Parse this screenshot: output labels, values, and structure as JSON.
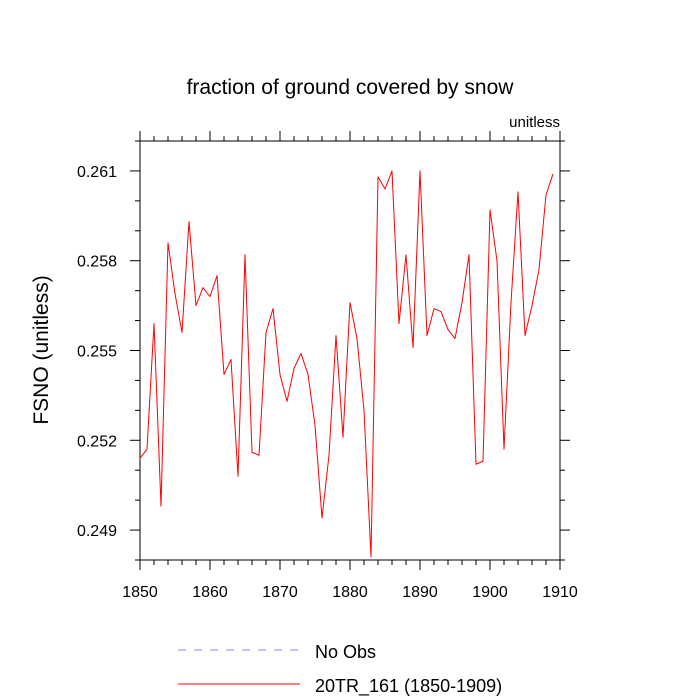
{
  "chart_data": {
    "type": "line",
    "title": "fraction of ground covered by snow",
    "units_label": "unitless",
    "ylabel": "FSNO  (unitless)",
    "xlabel": "",
    "xlim": [
      1850,
      1910
    ],
    "ylim": [
      0.248,
      0.262
    ],
    "x_ticks": [
      1850,
      1860,
      1870,
      1880,
      1890,
      1900,
      1910
    ],
    "x_tick_labels": [
      "1850",
      "1860",
      "1870",
      "1880",
      "1890",
      "1900",
      "1910"
    ],
    "y_ticks": [
      0.249,
      0.252,
      0.255,
      0.258,
      0.261
    ],
    "y_tick_labels": [
      "0.249",
      "0.252",
      "0.255",
      "0.258",
      "0.261"
    ],
    "grid": false,
    "legend_position": "bottom",
    "series": [
      {
        "name": "20TR_161 (1850-1909)",
        "color": "#ff0000",
        "style": "solid",
        "x": [
          1850,
          1851,
          1852,
          1853,
          1854,
          1855,
          1856,
          1857,
          1858,
          1859,
          1860,
          1861,
          1862,
          1863,
          1864,
          1865,
          1866,
          1867,
          1868,
          1869,
          1870,
          1871,
          1872,
          1873,
          1874,
          1875,
          1876,
          1877,
          1878,
          1879,
          1880,
          1881,
          1882,
          1883,
          1884,
          1885,
          1886,
          1887,
          1888,
          1889,
          1890,
          1891,
          1892,
          1893,
          1894,
          1895,
          1896,
          1897,
          1898,
          1899,
          1900,
          1901,
          1902,
          1903,
          1904,
          1905,
          1906,
          1907,
          1908,
          1909
        ],
        "values": [
          0.2514,
          0.2517,
          0.2559,
          0.2498,
          0.2586,
          0.2569,
          0.2556,
          0.2593,
          0.2565,
          0.2571,
          0.2568,
          0.2575,
          0.2542,
          0.2547,
          0.2508,
          0.2582,
          0.2516,
          0.2515,
          0.2556,
          0.2564,
          0.2542,
          0.2533,
          0.2544,
          0.2549,
          0.2542,
          0.2525,
          0.2494,
          0.2515,
          0.2555,
          0.2521,
          0.2566,
          0.2554,
          0.253,
          0.2481,
          0.2608,
          0.2604,
          0.261,
          0.2559,
          0.2582,
          0.2551,
          0.261,
          0.2555,
          0.2564,
          0.2563,
          0.2557,
          0.2554,
          0.2566,
          0.2582,
          0.2512,
          0.2513,
          0.2597,
          0.258,
          0.2517,
          0.2566,
          0.2603,
          0.2555,
          0.2565,
          0.2577,
          0.2602,
          0.2609
        ]
      }
    ],
    "legend": [
      {
        "name": "No Obs",
        "color": "#8888ff",
        "style": "dashed"
      },
      {
        "name": "20TR_161 (1850-1909)",
        "color": "#ff0000",
        "style": "solid"
      }
    ]
  }
}
